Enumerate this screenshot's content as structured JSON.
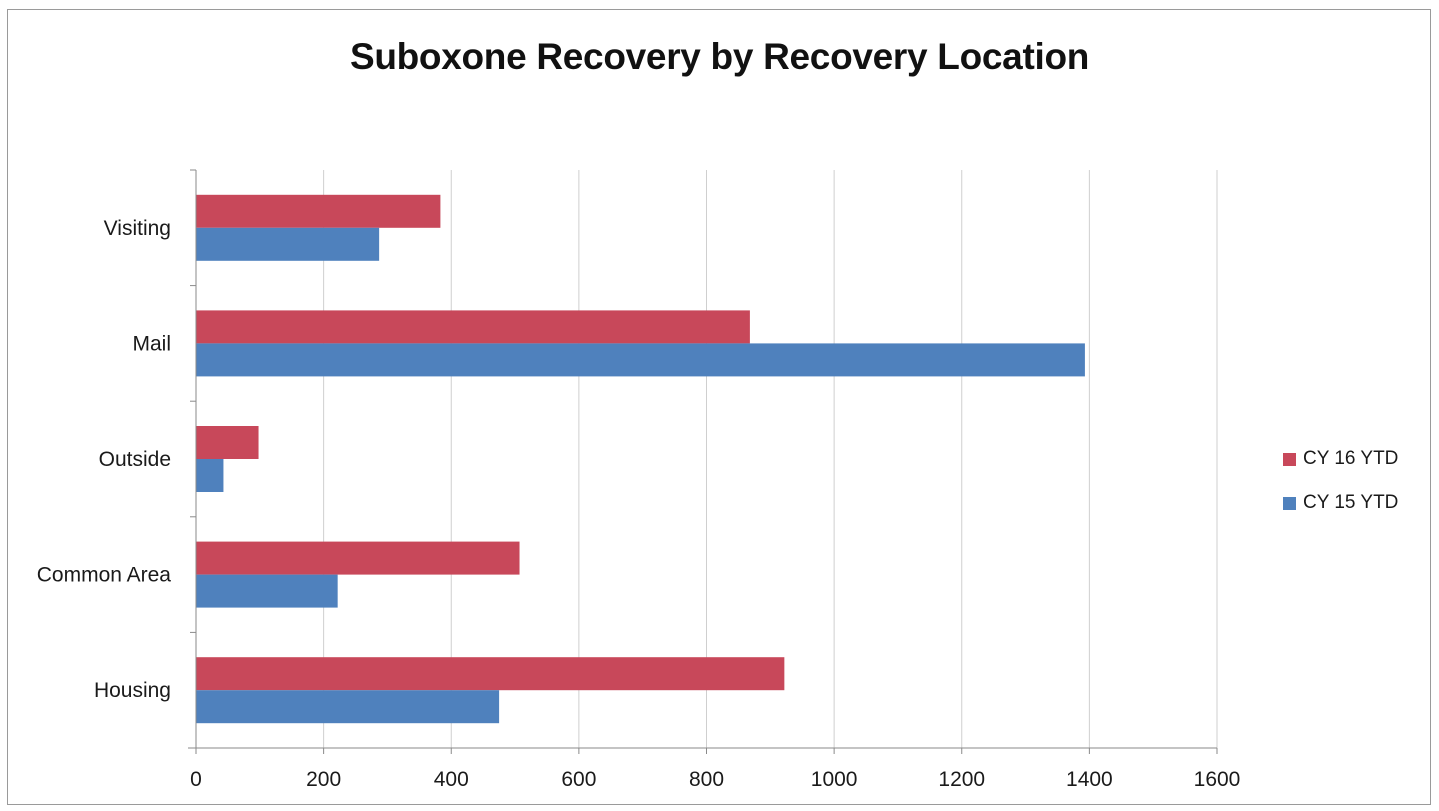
{
  "chart_data": {
    "type": "bar",
    "orientation": "horizontal",
    "title": "Suboxone Recovery by Recovery Location",
    "xlabel": "",
    "ylabel": "",
    "categories": [
      "Visiting",
      "Mail",
      "Outside",
      "Common Area",
      "Housing"
    ],
    "series": [
      {
        "name": "CY 16 YTD",
        "color": "#c8485a",
        "values": [
          383,
          868,
          98,
          507,
          922
        ]
      },
      {
        "name": "CY 15 YTD",
        "color": "#4f81bd",
        "values": [
          287,
          1393,
          43,
          222,
          475
        ]
      }
    ],
    "xlim": [
      0,
      1600
    ],
    "xticks": [
      0,
      200,
      400,
      600,
      800,
      1000,
      1200,
      1400,
      1600
    ],
    "grid": "vertical",
    "legend_position": "right"
  }
}
